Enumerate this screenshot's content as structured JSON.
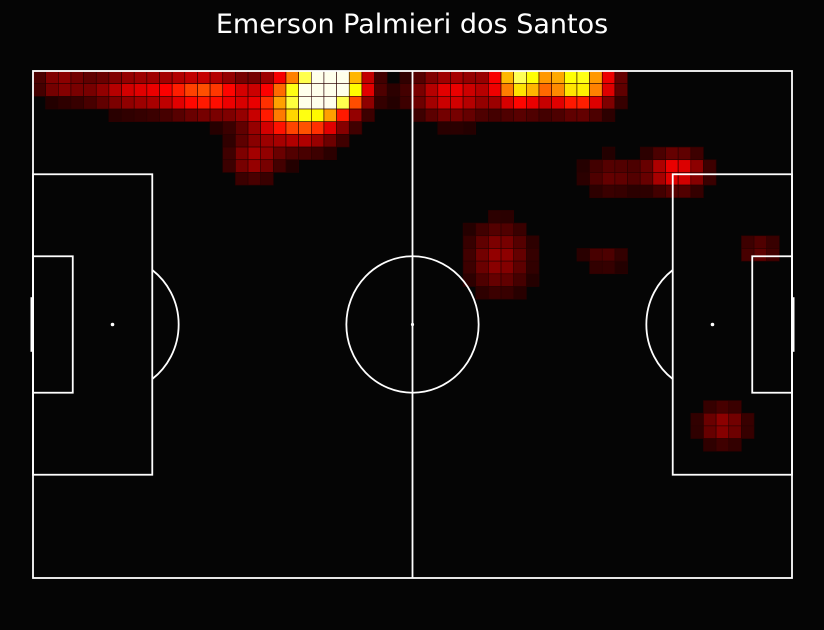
{
  "chart_data": {
    "type": "heatmap",
    "title": "Emerson Palmieri dos Santos",
    "xlabel": "",
    "ylabel": "",
    "pitch": {
      "length": 105,
      "width": 68,
      "units": "m"
    },
    "grid": {
      "cols": 60,
      "rows": 40
    },
    "colormap": "hot",
    "colors": {
      "background": "#050505",
      "pitch_lines": "#ffffff",
      "cell_outline": "#2a0000",
      "text": "#ffffff"
    },
    "hotspots": [
      {
        "x": 41.9,
        "y": 2.0,
        "sx": 2.8,
        "sy": 2.0,
        "value": 1.0
      },
      {
        "x": 38.5,
        "y": 3.5,
        "sx": 3.5,
        "sy": 3.5,
        "value": 0.7
      },
      {
        "x": 34.0,
        "y": 5.5,
        "sx": 4.0,
        "sy": 3.0,
        "value": 0.3
      },
      {
        "x": 24.0,
        "y": 3.0,
        "sx": 4.0,
        "sy": 2.0,
        "value": 0.45
      },
      {
        "x": 14.0,
        "y": 2.5,
        "sx": 5.0,
        "sy": 2.0,
        "value": 0.3
      },
      {
        "x": 3.5,
        "y": 1.5,
        "sx": 2.5,
        "sy": 1.5,
        "value": 0.2
      },
      {
        "x": 30.5,
        "y": 12.0,
        "sx": 2.5,
        "sy": 2.0,
        "value": 0.22
      },
      {
        "x": 58.0,
        "y": 3.0,
        "sx": 4.0,
        "sy": 2.5,
        "value": 0.35
      },
      {
        "x": 67.5,
        "y": 1.0,
        "sx": 2.5,
        "sy": 2.5,
        "value": 0.8
      },
      {
        "x": 75.5,
        "y": 1.5,
        "sx": 3.2,
        "sy": 2.4,
        "value": 0.82
      },
      {
        "x": 89.0,
        "y": 13.5,
        "sx": 2.8,
        "sy": 1.8,
        "value": 0.38
      },
      {
        "x": 80.0,
        "y": 14.0,
        "sx": 3.0,
        "sy": 2.0,
        "value": 0.15
      },
      {
        "x": 64.5,
        "y": 25.0,
        "sx": 3.2,
        "sy": 3.5,
        "value": 0.22
      },
      {
        "x": 79.0,
        "y": 25.0,
        "sx": 2.5,
        "sy": 1.5,
        "value": 0.12
      },
      {
        "x": 100.5,
        "y": 24.0,
        "sx": 2.2,
        "sy": 1.5,
        "value": 0.15
      },
      {
        "x": 95.5,
        "y": 47.5,
        "sx": 2.5,
        "sy": 2.0,
        "value": 0.22
      }
    ]
  }
}
